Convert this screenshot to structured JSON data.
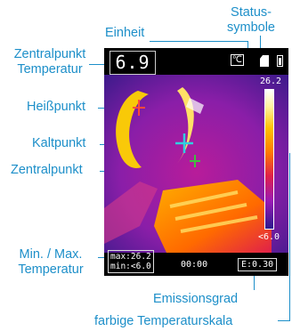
{
  "labels": {
    "status_icons": "Status-\nsymbole",
    "unit": "Einheit",
    "center_temp": "Zentralpunkt\nTemperatur",
    "hotspot": "Heißpunkt",
    "coldspot": "Kaltpunkt",
    "centerpoint": "Zentralpunkt",
    "minmax": "Min. / Max.\nTemperatur",
    "emissivity": "Emissionsgrad",
    "color_scale": "farbige Temperaturskala"
  },
  "screen": {
    "center_temperature": "6.9",
    "unit_symbol": "℃",
    "scale_max": "26.2",
    "scale_min": "<6.0",
    "max_readout": "max:26.2",
    "min_readout": "min:<6.0",
    "time": "00:00",
    "emissivity": "E:0.30"
  },
  "icons": {
    "unit": "celsius-icon",
    "sd_card": "sd-card-icon",
    "battery": "battery-icon"
  },
  "colors": {
    "annotation": "#1d8fc9",
    "hotspot_marker": "#ff4a3a",
    "coldspot_marker": "#2fd0e0",
    "center_marker": "#3fbf3f"
  }
}
